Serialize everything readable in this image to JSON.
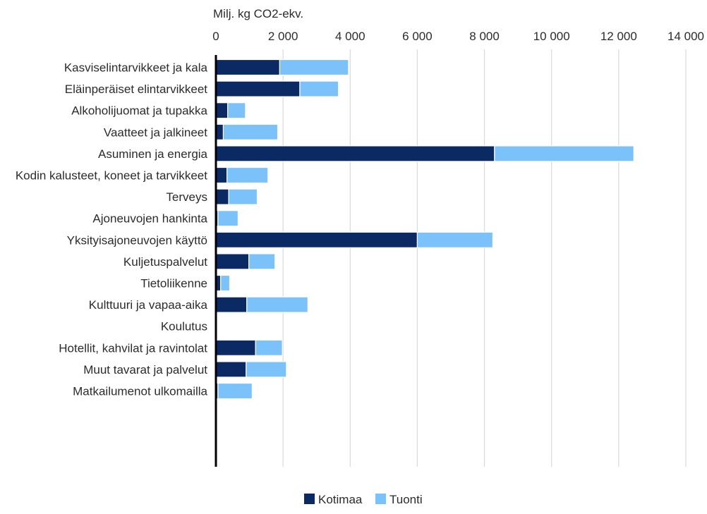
{
  "chart_data": {
    "type": "bar",
    "orientation": "horizontal",
    "stacked": true,
    "title": "",
    "xlabel": "Milj. kg CO2-ekv.",
    "ylabel": "",
    "xlim": [
      0,
      14000
    ],
    "x_ticks": [
      0,
      2000,
      4000,
      6000,
      8000,
      10000,
      12000,
      14000
    ],
    "x_tick_labels": [
      "0",
      "2 000",
      "4 000",
      "6 000",
      "8 000",
      "10 000",
      "12 000",
      "14 000"
    ],
    "grid": "vertical",
    "legend_position": "bottom-center",
    "categories": [
      "Kasviselintarvikkeet ja kala",
      "Eläinperäiset elintarvikkeet",
      "Alkoholijuomat ja tupakka",
      "Vaatteet ja jalkineet",
      "Asuminen ja energia",
      "Kodin kalusteet, koneet ja tarvikkeet",
      "Terveys",
      "Ajoneuvojen hankinta",
      "Yksityisajoneuvojen käyttö",
      "Kuljetuspalvelut",
      "Tietoliikenne",
      "Kulttuuri ja vapaa-aika",
      "Koulutus",
      "Hotellit, kahvilat ja ravintolat",
      "Muut tavarat ja palvelut",
      "Matkailumenot ulkomailla"
    ],
    "series": [
      {
        "name": "Kotimaa",
        "color": "#0b2a63",
        "values": [
          1900,
          2500,
          350,
          220,
          8300,
          330,
          380,
          60,
          6000,
          980,
          140,
          920,
          20,
          1180,
          900,
          60
        ]
      },
      {
        "name": "Tuonti",
        "color": "#7cc2fa",
        "values": [
          2050,
          1150,
          530,
          1620,
          4150,
          1220,
          850,
          600,
          2250,
          780,
          270,
          1820,
          20,
          800,
          1200,
          1020
        ]
      }
    ]
  }
}
